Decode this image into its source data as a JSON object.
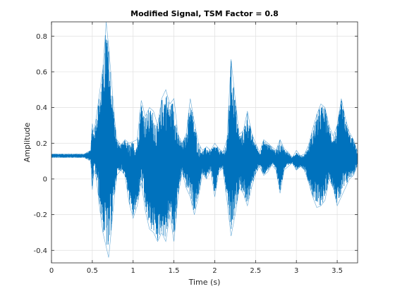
{
  "chart_data": {
    "type": "line",
    "title": "Modified Signal, TSM Factor = 0.8",
    "xlabel": "Time (s)",
    "ylabel": "Amplitude",
    "xlim": [
      0,
      3.75
    ],
    "ylim": [
      -0.47,
      0.88
    ],
    "xticks": [
      0,
      0.5,
      1,
      1.5,
      2,
      2.5,
      3,
      3.5
    ],
    "xtick_labels": [
      "0",
      "0.5",
      "1",
      "1.5",
      "2",
      "2.5",
      "3",
      "3.5"
    ],
    "yticks": [
      -0.4,
      -0.2,
      0,
      0.2,
      0.4,
      0.6,
      0.8
    ],
    "ytick_labels": [
      "-0.4",
      "-0.2",
      "0",
      "0.2",
      "0.4",
      "0.6",
      "0.8"
    ],
    "grid": true,
    "line_color": "#0072BD",
    "series": [
      {
        "envelope": {
          "t": [
            0,
            0.1,
            0.2,
            0.3,
            0.4,
            0.48,
            0.5,
            0.52,
            0.55,
            0.6,
            0.63,
            0.67,
            0.7,
            0.73,
            0.77,
            0.8,
            0.85,
            0.9,
            0.95,
            1.0,
            1.05,
            1.1,
            1.15,
            1.2,
            1.25,
            1.3,
            1.35,
            1.4,
            1.45,
            1.5,
            1.55,
            1.6,
            1.65,
            1.7,
            1.75,
            1.8,
            1.85,
            1.9,
            1.95,
            2.0,
            2.05,
            2.1,
            2.15,
            2.2,
            2.25,
            2.3,
            2.35,
            2.4,
            2.45,
            2.5,
            2.55,
            2.6,
            2.65,
            2.7,
            2.75,
            2.8,
            2.85,
            2.9,
            2.95,
            3.0,
            3.05,
            3.1,
            3.15,
            3.2,
            3.25,
            3.3,
            3.35,
            3.4,
            3.45,
            3.5,
            3.55,
            3.6,
            3.65,
            3.7,
            3.75
          ],
          "upper": [
            0.14,
            0.14,
            0.14,
            0.14,
            0.14,
            0.16,
            0.31,
            0.26,
            0.35,
            0.52,
            0.62,
            0.88,
            0.74,
            0.58,
            0.35,
            0.22,
            0.19,
            0.22,
            0.2,
            0.21,
            0.22,
            0.44,
            0.35,
            0.4,
            0.38,
            0.3,
            0.45,
            0.5,
            0.42,
            0.45,
            0.25,
            0.2,
            0.25,
            0.45,
            0.32,
            0.2,
            0.16,
            0.18,
            0.16,
            0.2,
            0.17,
            0.15,
            0.22,
            0.67,
            0.45,
            0.25,
            0.27,
            0.38,
            0.26,
            0.2,
            0.15,
            0.22,
            0.2,
            0.18,
            0.16,
            0.22,
            0.17,
            0.15,
            0.12,
            0.16,
            0.13,
            0.14,
            0.19,
            0.28,
            0.36,
            0.42,
            0.4,
            0.3,
            0.24,
            0.3,
            0.45,
            0.34,
            0.26,
            0.22,
            0.15
          ],
          "lower": [
            0.12,
            0.12,
            0.12,
            0.12,
            0.12,
            0.1,
            -0.06,
            0.05,
            0.0,
            -0.2,
            -0.3,
            -0.38,
            -0.44,
            -0.3,
            -0.1,
            0.02,
            0.05,
            0.02,
            -0.13,
            -0.22,
            -0.15,
            -0.02,
            -0.18,
            -0.28,
            -0.3,
            -0.35,
            -0.3,
            -0.35,
            -0.2,
            -0.35,
            -0.1,
            0.04,
            -0.05,
            -0.1,
            -0.2,
            -0.1,
            0.03,
            0.0,
            0.05,
            -0.1,
            0.04,
            0.06,
            -0.12,
            -0.32,
            -0.2,
            -0.05,
            -0.08,
            -0.15,
            -0.05,
            0.03,
            0.07,
            0.02,
            0.04,
            0.08,
            0.05,
            -0.08,
            0.05,
            0.07,
            0.09,
            0.05,
            0.07,
            0.05,
            -0.02,
            -0.1,
            -0.16,
            -0.15,
            -0.12,
            0.0,
            -0.05,
            -0.15,
            -0.1,
            -0.05,
            0.0,
            0.02,
            0.08
          ]
        }
      }
    ]
  }
}
